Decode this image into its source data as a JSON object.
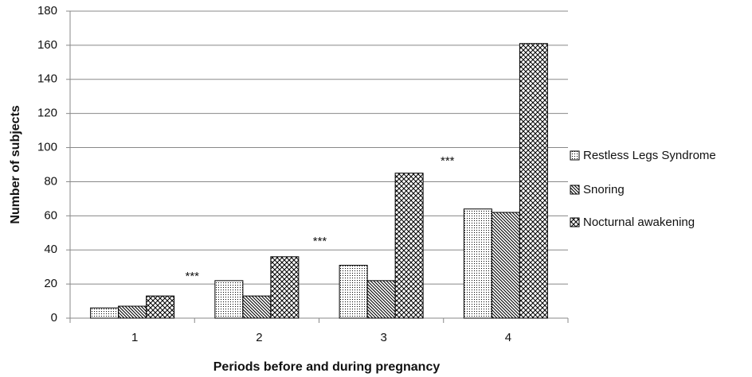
{
  "chart_data": {
    "type": "bar",
    "x_label": "Periods before and during pregnancy",
    "y_label": "Number of subjects",
    "categories": [
      "1",
      "2",
      "3",
      "4"
    ],
    "series": [
      {
        "name": "Restless Legs Syndrome",
        "color": "#000000",
        "pattern": "dots",
        "values": [
          6,
          22,
          31,
          64
        ]
      },
      {
        "name": "Snoring",
        "color": "#000000",
        "pattern": "hatch",
        "values": [
          7,
          13,
          22,
          62
        ]
      },
      {
        "name": "Nocturnal awakening",
        "color": "#000000",
        "pattern": "cross",
        "values": [
          13,
          36,
          85,
          161
        ]
      }
    ],
    "annotations": [
      "***",
      "***",
      "***"
    ],
    "ylim": [
      0,
      180
    ],
    "yticks": [
      0,
      20,
      40,
      60,
      80,
      100,
      120,
      140,
      160,
      180
    ],
    "grid": true,
    "legend": "right"
  }
}
